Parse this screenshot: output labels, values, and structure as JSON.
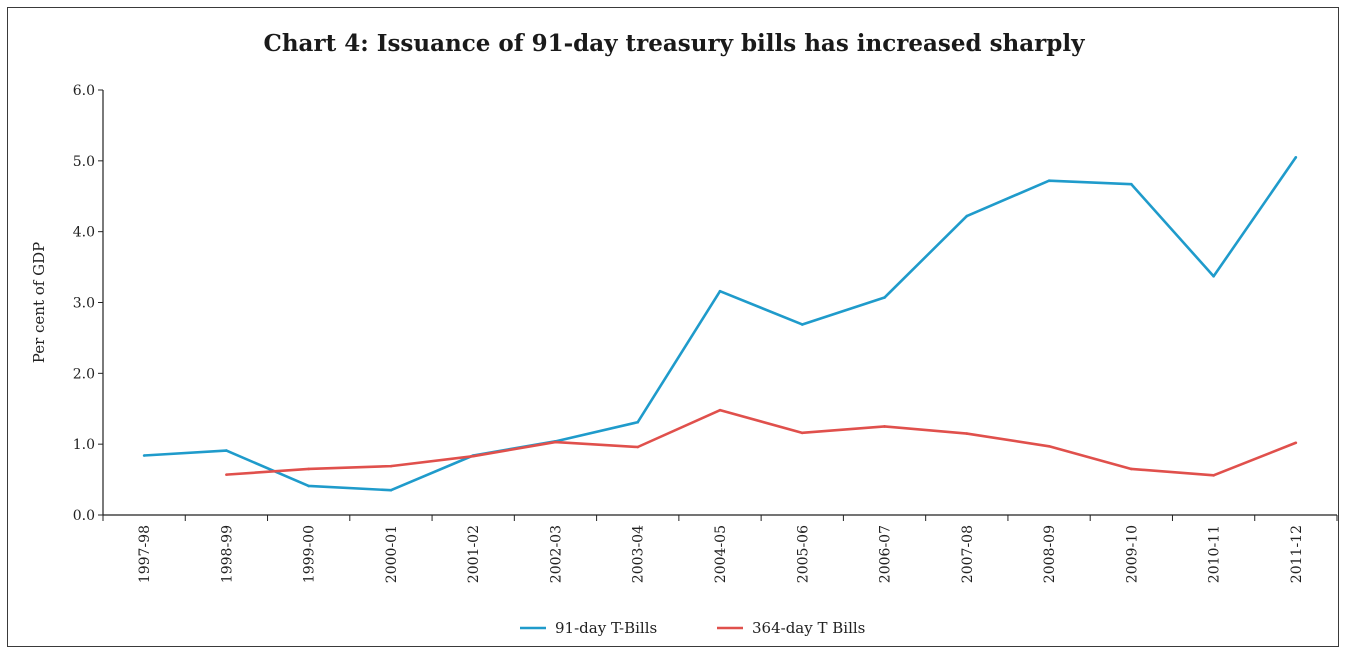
{
  "chart_data": {
    "type": "line",
    "title": "Chart 4: Issuance of 91-day treasury bills has increased sharply",
    "xlabel": "",
    "ylabel": "Per cent of GDP",
    "ylim": [
      0,
      6
    ],
    "yticks": [
      "0.0",
      "1.0",
      "2.0",
      "3.0",
      "4.0",
      "5.0",
      "6.0"
    ],
    "categories": [
      "1997-98",
      "1998-99",
      "1999-00",
      "2000-01",
      "2001-02",
      "2002-03",
      "2003-04",
      "2004-05",
      "2005-06",
      "2006-07",
      "2007-08",
      "2008-09",
      "2009-10",
      "2010-11",
      "2011-12"
    ],
    "series": [
      {
        "name": "91-day T-Bills",
        "color": "#1f9bcb",
        "values": [
          0.84,
          0.91,
          0.41,
          0.35,
          0.84,
          1.04,
          1.31,
          3.16,
          2.69,
          3.07,
          4.22,
          4.72,
          4.67,
          3.37,
          5.05
        ]
      },
      {
        "name": "364-day T Bills",
        "color": "#e0504c",
        "values": [
          null,
          0.57,
          0.65,
          0.69,
          0.83,
          1.03,
          0.96,
          1.48,
          1.16,
          1.25,
          1.15,
          0.97,
          0.65,
          0.56,
          1.02
        ]
      }
    ],
    "grid": false,
    "legend_position": "bottom-center"
  }
}
